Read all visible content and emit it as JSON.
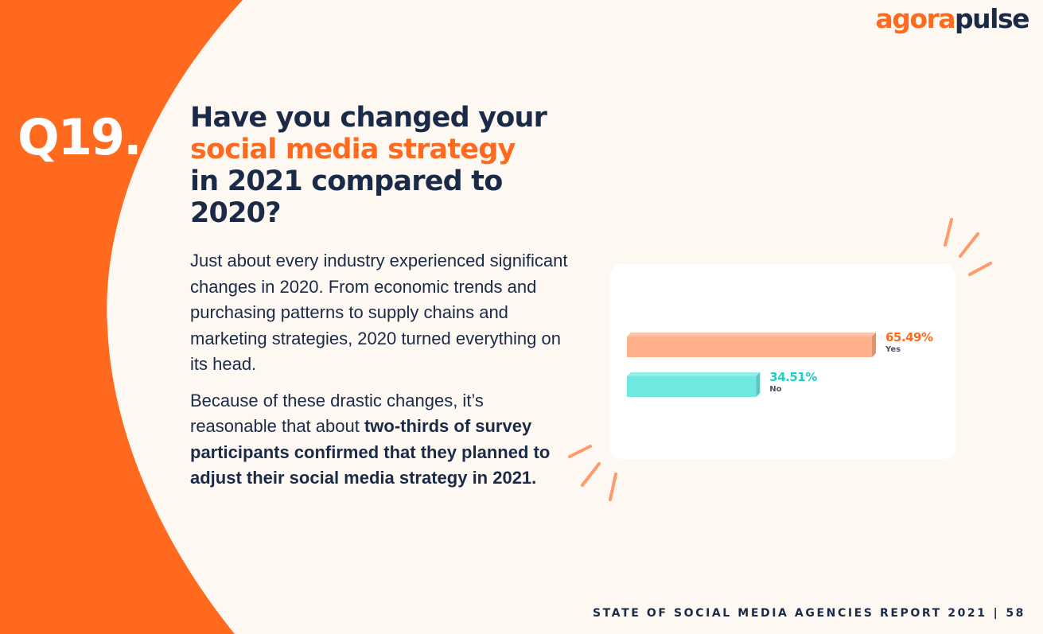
{
  "brand": {
    "part1": "agora",
    "part2": "pulse",
    "colors": {
      "orange": "#ff6a1f",
      "navy": "#1b2a47"
    }
  },
  "question_number": "Q19.",
  "headline": {
    "line1": "Have you changed your",
    "line2": "social media strategy",
    "line3": "in 2021 compared to",
    "line4": "2020?"
  },
  "body": {
    "paragraph1": "Just about every industry experienced significant changes in 2020. From economic trends and purchasing patterns to supply chains and marketing strategies, 2020 turned everything on its head.",
    "paragraph2_plain": "Because of these drastic changes, it’s reasonable that about ",
    "paragraph2_bold": "two-thirds of survey participants confirmed that they planned to adjust their social media strategy in 2021."
  },
  "footer": {
    "report": "STATE OF SOCIAL MEDIA AGENCIES REPORT 2021",
    "separator": "|",
    "page": "58"
  },
  "chart_data": {
    "type": "bar",
    "orientation": "horizontal",
    "categories": [
      "Yes",
      "No"
    ],
    "values": [
      65.49,
      34.51
    ],
    "value_labels": [
      "65.49%",
      "34.51%"
    ],
    "colors": [
      "#ffb08a",
      "#6fe8df"
    ],
    "label_colors": [
      "#ff6a1f",
      "#1fcfc3"
    ],
    "xlim": [
      0,
      65.49
    ]
  }
}
